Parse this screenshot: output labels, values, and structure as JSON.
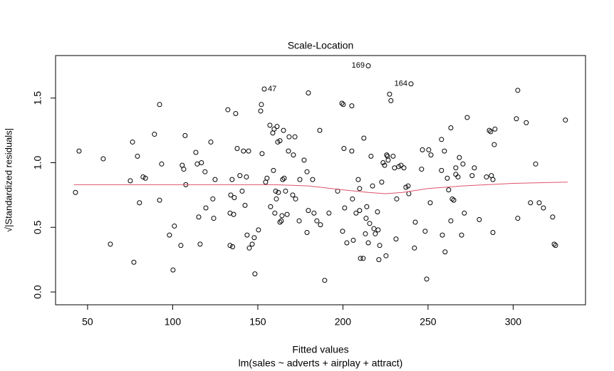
{
  "chart_data": {
    "type": "scatter",
    "title": "Scale-Location",
    "x_label": "Fitted values",
    "subtitle": "lm(sales ~ adverts + airplay + attract)",
    "y_label": "√|Standardized residuals|",
    "xlim": [
      31.2,
      342.5
    ],
    "ylim": [
      -0.099,
      1.829
    ],
    "xticks": [
      50,
      100,
      150,
      200,
      250,
      300
    ],
    "yticks": [
      {
        "value": 0,
        "label": "0.0"
      },
      0.5,
      {
        "value": 1,
        "label": "1.0"
      },
      1.5
    ],
    "point_color": "#000000",
    "points": {
      "x": [
        214.9,
        240.0,
        153.8,
        42.9,
        45.0,
        59.2,
        63.4,
        77.2,
        75.1,
        76.4,
        79.3,
        80.5,
        82.6,
        84.0,
        89.3,
        93.5,
        92.3,
        92.3,
        98.1,
        101.0,
        100.2,
        104.8,
        105.6,
        106.5,
        107.3,
        107.7,
        113.6,
        114.4,
        115.3,
        116.1,
        116.9,
        119.0,
        119.5,
        122.4,
        123.6,
        124.1,
        124.9,
        132.4,
        133.7,
        134.1,
        133.7,
        135.2,
        134.9,
        135.8,
        136.2,
        137.0,
        137.9,
        139.5,
        140.8,
        141.6,
        142.5,
        143.3,
        143.7,
        144.6,
        145.0,
        146.7,
        147.9,
        148.3,
        150.4,
        151.7,
        152.1,
        152.5,
        154.6,
        155.4,
        157.1,
        157.5,
        158.8,
        159.2,
        159.6,
        160.0,
        160.5,
        160.9,
        161.3,
        161.7,
        162.1,
        163.0,
        163.0,
        163.8,
        164.2,
        164.6,
        165.1,
        165.5,
        166.3,
        167.2,
        168.0,
        168.4,
        170.5,
        170.9,
        171.8,
        172.2,
        174.3,
        174.7,
        177.2,
        178.9,
        178.9,
        179.7,
        179.7,
        182.2,
        183.0,
        184.7,
        186.4,
        186.8,
        189.3,
        191.8,
        196.9,
        199.4,
        200.2,
        199.8,
        200.6,
        201.0,
        202.3,
        205.2,
        205.2,
        205.6,
        206.1,
        207.7,
        209.0,
        209.8,
        209.8,
        210.3,
        211.9,
        212.3,
        213.2,
        213.6,
        214.0,
        214.9,
        215.7,
        216.5,
        217.4,
        218.2,
        219.0,
        220.3,
        220.7,
        221.1,
        221.6,
        222.8,
        223.6,
        224.5,
        225.3,
        225.7,
        226.2,
        226.6,
        227.4,
        228.2,
        229.5,
        230.3,
        231.2,
        231.6,
        232.8,
        234.1,
        235.8,
        237.0,
        238.3,
        238.7,
        242.0,
        242.5,
        246.2,
        246.7,
        248.3,
        249.2,
        250.4,
        251.7,
        251.3,
        257.9,
        257.9,
        258.4,
        259.6,
        260.0,
        261.3,
        262.1,
        263.4,
        263.4,
        264.2,
        265.1,
        266.3,
        266.3,
        267.6,
        268.4,
        269.7,
        270.5,
        271.3,
        273.0,
        275.9,
        277.2,
        280.1,
        284.3,
        288.1,
        286.0,
        286.8,
        287.2,
        288.9,
        289.3,
        288.1,
        301.9,
        302.7,
        302.7,
        307.7,
        310.2,
        313.2,
        315.3,
        317.8,
        323.2,
        324.1,
        324.9,
        330.7
      ],
      "y": [
        1.75,
        1.61,
        1.57,
        0.77,
        1.09,
        1.03,
        0.37,
        0.23,
        0.86,
        1.16,
        1.05,
        0.69,
        0.89,
        0.88,
        1.22,
        0.99,
        1.45,
        0.71,
        0.44,
        0.51,
        0.17,
        0.36,
        0.98,
        0.95,
        1.21,
        0.83,
        1.08,
        0.99,
        0.58,
        0.37,
        1.0,
        0.93,
        0.65,
        1.16,
        0.72,
        0.57,
        0.87,
        1.41,
        0.61,
        0.75,
        0.36,
        0.35,
        0.87,
        0.6,
        0.73,
        1.38,
        1.11,
        0.9,
        0.78,
        1.09,
        0.67,
        0.89,
        0.44,
        1.09,
        0.34,
        0.37,
        0.42,
        0.14,
        0.48,
        1.4,
        1.45,
        1.07,
        0.85,
        0.88,
        1.29,
        0.66,
        1.23,
        0.94,
        1.26,
        0.61,
        0.78,
        0.72,
        1.28,
        1.16,
        0.77,
        1.17,
        0.54,
        0.55,
        0.59,
        0.87,
        1.25,
        0.88,
        0.78,
        0.6,
        1.09,
        1.2,
        0.75,
        1.06,
        1.2,
        0.72,
        0.55,
        0.87,
        1.02,
        0.46,
        0.93,
        1.54,
        0.63,
        0.87,
        0.61,
        0.55,
        1.25,
        0.52,
        0.09,
        0.61,
        0.78,
        1.46,
        1.45,
        0.47,
        1.11,
        0.65,
        0.38,
        1.09,
        1.44,
        0.72,
        0.4,
        0.61,
        0.87,
        0.8,
        0.63,
        0.26,
        0.26,
        1.19,
        0.45,
        0.57,
        0.66,
        0.38,
        0.53,
        1.05,
        0.82,
        0.49,
        0.45,
        0.62,
        0.48,
        0.25,
        0.36,
        0.85,
        1.0,
        0.98,
        0.28,
        1.06,
        1.05,
        1.02,
        1.53,
        1.48,
        1.05,
        0.96,
        0.41,
        0.72,
        0.97,
        0.98,
        0.96,
        0.81,
        0.82,
        0.76,
        0.34,
        0.54,
        0.95,
        1.1,
        0.47,
        0.1,
        1.1,
        1.06,
        0.69,
        1.18,
        0.94,
        0.44,
        1.09,
        0.31,
        0.88,
        0.79,
        0.55,
        1.27,
        0.72,
        0.71,
        0.96,
        0.91,
        0.89,
        1.04,
        0.44,
        0.99,
        0.61,
        1.35,
        0.9,
        0.96,
        0.56,
        0.89,
        0.87,
        1.25,
        1.24,
        0.9,
        1.14,
        1.26,
        0.46,
        1.34,
        1.56,
        0.57,
        1.31,
        0.69,
        0.99,
        0.69,
        0.65,
        0.58,
        0.37,
        0.36,
        1.33
      ],
      "labels": [
        "169",
        "164",
        "47",
        null,
        null,
        null,
        null,
        null,
        null,
        null,
        null,
        null,
        null,
        null,
        null,
        null,
        null,
        null,
        null,
        null,
        null,
        null,
        null,
        null,
        null,
        null,
        null,
        null,
        null,
        null,
        null,
        null,
        null,
        null,
        null,
        null,
        null,
        null,
        null,
        null,
        null,
        null,
        null,
        null,
        null,
        null,
        null,
        null,
        null,
        null,
        null,
        null,
        null,
        null,
        null,
        null,
        null,
        null,
        null,
        null,
        null,
        null,
        null,
        null,
        null,
        null,
        null,
        null,
        null,
        null,
        null,
        null,
        null,
        null,
        null,
        null,
        null,
        null,
        null,
        null,
        null,
        null,
        null,
        null,
        null,
        null,
        null,
        null,
        null,
        null,
        null,
        null,
        null,
        null,
        null,
        null,
        null,
        null,
        null,
        null,
        null,
        null,
        null,
        null,
        null,
        null,
        null,
        null,
        null,
        null,
        null,
        null,
        null,
        null,
        null,
        null,
        null,
        null,
        null,
        null,
        null,
        null,
        null,
        null,
        null,
        null,
        null,
        null,
        null,
        null,
        null,
        null,
        null,
        null,
        null,
        null,
        null,
        null,
        null,
        null,
        null,
        null,
        null,
        null,
        null,
        null,
        null,
        null,
        null,
        null,
        null,
        null,
        null,
        null,
        null,
        null,
        null,
        null,
        null,
        null,
        null,
        null,
        null,
        null,
        null,
        null,
        null,
        null,
        null,
        null,
        null,
        null,
        null,
        null,
        null,
        null,
        null,
        null,
        null,
        null,
        null,
        null,
        null,
        null,
        null,
        null,
        null,
        null,
        null,
        null,
        null,
        null,
        null,
        null,
        null,
        null,
        null,
        null,
        null,
        null,
        null,
        null,
        null,
        null,
        null
      ]
    },
    "smooth": {
      "color": "#df536b",
      "x": [
        42,
        80,
        120,
        160,
        180,
        200,
        215,
        225,
        235,
        250,
        270,
        300,
        332
      ],
      "y": [
        0.83,
        0.83,
        0.83,
        0.83,
        0.82,
        0.79,
        0.77,
        0.76,
        0.77,
        0.8,
        0.82,
        0.84,
        0.85
      ]
    }
  }
}
